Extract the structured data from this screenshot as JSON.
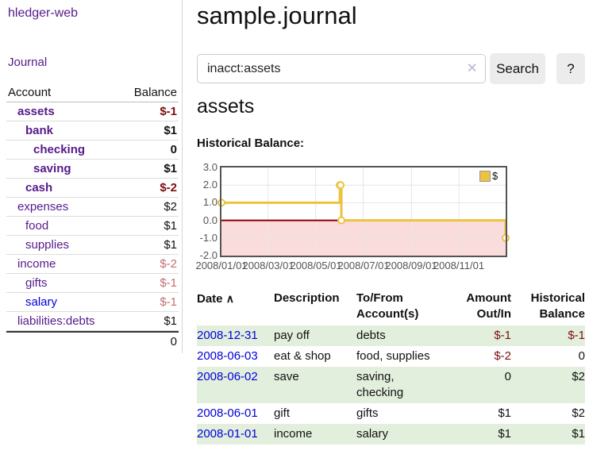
{
  "colors": {
    "link_purple": "#551A8B",
    "link_blue": "#0000DD",
    "negative_strong": "#7E0E0E",
    "negative_dim": "#C26E6E",
    "row_stripe_green": "#E3EFDD",
    "chart_line": "#EDC240",
    "chart_negative_fill": "#FBDCDC",
    "chart_zero_line": "#8B0000",
    "plot_border": "#545454",
    "gridline": "#E6E6E6"
  },
  "sidebar": {
    "app_title": "hledger-web",
    "nav": {
      "journal_label": "Journal"
    },
    "accounts_table": {
      "headers": {
        "account": "Account",
        "balance": "Balance"
      },
      "rows": [
        {
          "name": "assets",
          "balance": "$-1",
          "depth": 1,
          "in_selection": true,
          "negative": "strong"
        },
        {
          "name": "bank",
          "balance": "$1",
          "depth": 2,
          "in_selection": true,
          "negative": "none"
        },
        {
          "name": "checking",
          "balance": "0",
          "depth": 3,
          "in_selection": true,
          "negative": "none"
        },
        {
          "name": "saving",
          "balance": "$1",
          "depth": 3,
          "in_selection": true,
          "negative": "none"
        },
        {
          "name": "cash",
          "balance": "$-2",
          "depth": 2,
          "in_selection": true,
          "negative": "strong"
        },
        {
          "name": "expenses",
          "balance": "$2",
          "depth": 1,
          "in_selection": false,
          "negative": "none"
        },
        {
          "name": "food",
          "balance": "$1",
          "depth": 2,
          "in_selection": false,
          "negative": "none"
        },
        {
          "name": "supplies",
          "balance": "$1",
          "depth": 2,
          "in_selection": false,
          "negative": "none"
        },
        {
          "name": "income",
          "balance": "$-2",
          "depth": 1,
          "in_selection": false,
          "negative": "dim"
        },
        {
          "name": "gifts",
          "balance": "$-1",
          "depth": 2,
          "in_selection": false,
          "negative": "dim"
        },
        {
          "name": "salary",
          "balance": "$-1",
          "depth": 2,
          "in_selection": false,
          "negative": "dim"
        },
        {
          "name": "liabilities:debts",
          "balance": "$1",
          "depth": 1,
          "in_selection": false,
          "negative": "none"
        }
      ],
      "total": "0"
    }
  },
  "main": {
    "title": "sample.journal",
    "search": {
      "value": "inacct:assets",
      "clear_icon": "✕",
      "button_label": "Search",
      "help_label": "?"
    },
    "account_heading": "assets",
    "chart_label": "Historical Balance:",
    "register_table": {
      "headers": {
        "date": "Date",
        "sort_indicator": "∧",
        "description": "Description",
        "tofrom": "To/From Account(s)",
        "amount": "Amount Out/In",
        "historical": "Historical Balance"
      },
      "rows": [
        {
          "date": "2008-12-31",
          "description": "pay off",
          "tofrom": "debts",
          "amount": "$-1",
          "historical": "$-1",
          "striped": true
        },
        {
          "date": "2008-06-03",
          "description": "eat & shop",
          "tofrom": "food, supplies",
          "amount": "$-2",
          "historical": "0",
          "striped": false
        },
        {
          "date": "2008-06-02",
          "description": "save",
          "tofrom": "saving, checking",
          "amount": "0",
          "historical": "$2",
          "striped": true
        },
        {
          "date": "2008-06-01",
          "description": "gift",
          "tofrom": "gifts",
          "amount": "$1",
          "historical": "$2",
          "striped": false
        },
        {
          "date": "2008-01-01",
          "description": "income",
          "tofrom": "salary",
          "amount": "$1",
          "historical": "$1",
          "striped": true
        }
      ]
    }
  },
  "chart_data": {
    "type": "line",
    "title": "Historical Balance",
    "style": "step",
    "ylim": [
      -2,
      3
    ],
    "xlim_days": [
      0,
      365
    ],
    "x_axis_dates": [
      "2008-01-01",
      "2008-12-31"
    ],
    "y_tick_labels": [
      "3.0",
      "2.0",
      "1.0",
      "0.0",
      "-1.0",
      "-2.0"
    ],
    "y_tick_values": [
      3,
      2,
      1,
      0,
      -1,
      -2
    ],
    "y_grid_values": [
      2,
      1,
      -1
    ],
    "x_ticks": [
      {
        "label": "2008/01/01",
        "day": 0
      },
      {
        "label": "2008/03/01",
        "day": 60
      },
      {
        "label": "2008/05/01",
        "day": 121
      },
      {
        "label": "2008/07/01",
        "day": 182
      },
      {
        "label": "2008/09/01",
        "day": 244
      },
      {
        "label": "2008/11/01",
        "day": 305
      }
    ],
    "series": [
      {
        "name": "$",
        "color": "#EDC240",
        "points": [
          {
            "date": "2008-01-01",
            "day": 0,
            "value": 1
          },
          {
            "date": "2008-06-01",
            "day": 152,
            "value": 2
          },
          {
            "date": "2008-06-02",
            "day": 153,
            "value": 2
          },
          {
            "date": "2008-06-03",
            "day": 154,
            "value": 0
          },
          {
            "date": "2008-12-31",
            "day": 365,
            "value": -1
          }
        ]
      }
    ],
    "legend": {
      "label": "$",
      "position": "top-right"
    },
    "negative_region_fill": "#FBDCDC",
    "zero_line_color": "#8B0000",
    "grid": true
  }
}
